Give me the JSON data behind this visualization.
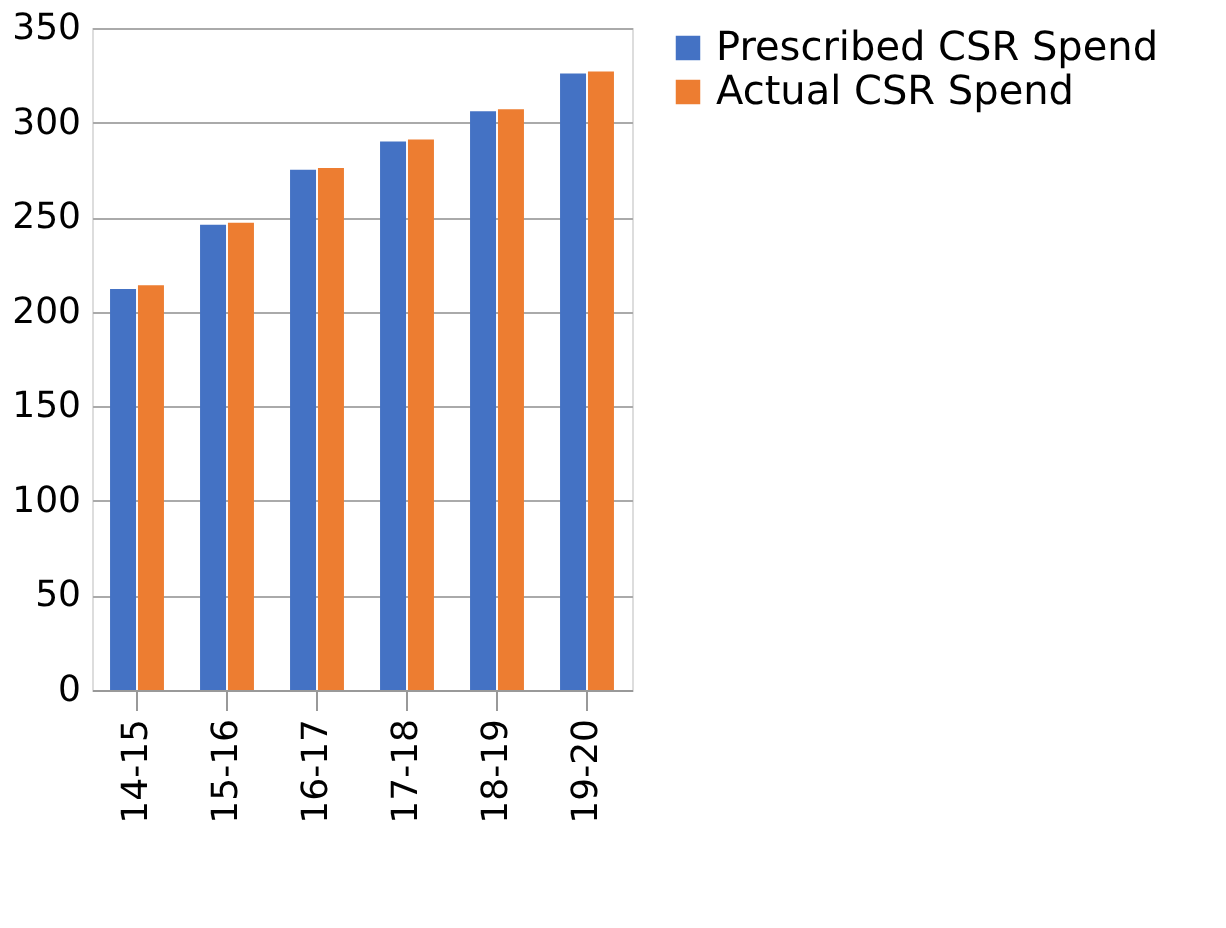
{
  "chart_data": {
    "type": "bar",
    "categories": [
      "14-15",
      "15-16",
      "16-17",
      "17-18",
      "18-19",
      "19-20"
    ],
    "series": [
      {
        "name": "Prescribed CSR Spend",
        "color": "#4472c4",
        "values": [
          212,
          246,
          275,
          290,
          306,
          326
        ]
      },
      {
        "name": "Actual CSR Spend",
        "color": "#ed7d31",
        "values": [
          214,
          247,
          276,
          291,
          307,
          327
        ]
      }
    ],
    "ylim": [
      0,
      350
    ],
    "yticks": [
      0,
      50,
      100,
      150,
      200,
      250,
      300,
      350
    ],
    "grid": "y",
    "legend": "right"
  }
}
